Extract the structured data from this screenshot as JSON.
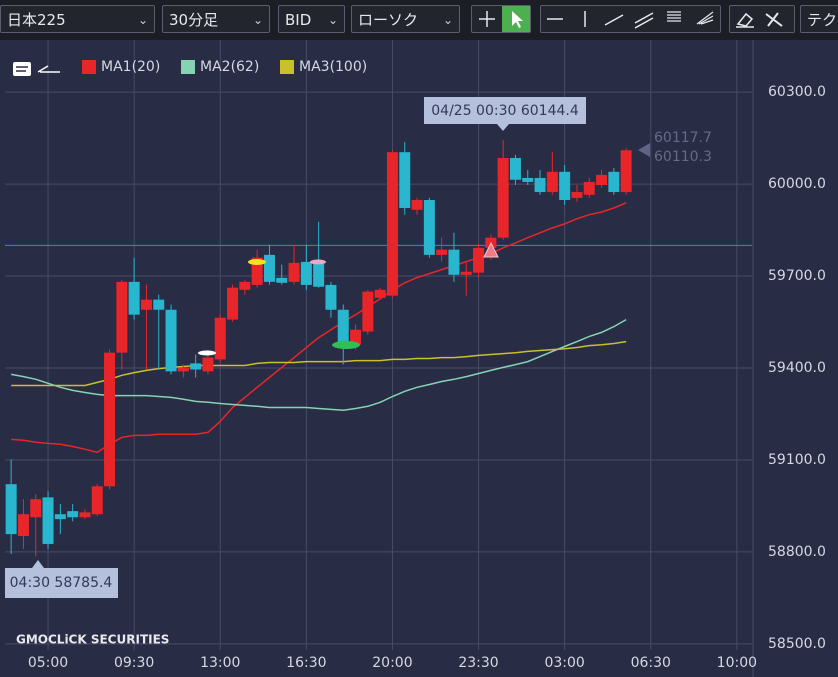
{
  "toolbar": {
    "symbol": "日本225",
    "timeframe": "30分足",
    "price_type": "BID",
    "chart_style": "ローソク",
    "tech": "テク"
  },
  "watermark": "GMOCLiCK SECURITIES",
  "chart_data": {
    "type": "candlestick",
    "up_color": "#e8262a",
    "down_color": "#29b6cf",
    "categories": [
      null,
      null,
      null,
      "05:00",
      null,
      null,
      null,
      null,
      null,
      null,
      "09:30",
      null,
      null,
      null,
      null,
      null,
      null,
      "13:00",
      null,
      null,
      null,
      null,
      null,
      null,
      "16:30",
      null,
      null,
      null,
      null,
      null,
      null,
      "20:00",
      null,
      null,
      null,
      null,
      null,
      null,
      "23:30",
      null,
      null,
      null,
      null,
      null,
      null,
      "03:00",
      null,
      null,
      null,
      null,
      null,
      null,
      "06:30",
      null,
      null,
      null,
      null,
      null,
      null,
      "10:00"
    ],
    "open": [
      59021,
      58852,
      58913,
      58978,
      58923,
      58933,
      58913,
      58923,
      59014,
      59450,
      59681,
      59590,
      59623,
      59590,
      59389,
      59415,
      59389,
      59428,
      59558,
      59655,
      59671,
      59769,
      59694,
      59681,
      59746,
      59740,
      59671,
      59590,
      59476,
      59519,
      59629,
      59636,
      60104,
      59916,
      59948,
      59769,
      59786,
      59704,
      59711,
      59792,
      59825,
      60085,
      60020,
      60020,
      59974,
      60040,
      59955,
      59965,
      59997,
      60040,
      59974,
      null,
      null,
      null,
      null,
      null,
      null,
      null,
      null,
      null
    ],
    "high": [
      59102,
      58972,
      58988,
      58998,
      58956,
      58956,
      58939,
      59021,
      59460,
      59688,
      59760,
      59672,
      59639,
      59607,
      59411,
      59444,
      59460,
      59574,
      59672,
      59688,
      59786,
      59802,
      59737,
      59802,
      59802,
      59877,
      59681,
      59607,
      59542,
      59655,
      59662,
      60111,
      60137,
      59955,
      59955,
      59825,
      59841,
      59743,
      59805,
      59835,
      60144.4,
      60095,
      60046,
      60046,
      60105,
      60062,
      59997,
      60020,
      60046,
      60053,
      60118,
      null,
      null,
      null,
      null,
      null,
      null,
      null,
      null,
      null
    ],
    "low": [
      58793,
      58809,
      58785.4,
      58809,
      58858,
      58900,
      58907,
      58917,
      59004,
      59395,
      59558,
      59395,
      59395,
      59379,
      59369,
      59369,
      59379,
      59421,
      59551,
      59639,
      59662,
      59672,
      59672,
      59672,
      59655,
      59662,
      59564,
      59411,
      59460,
      59509,
      59623,
      59629,
      59900,
      59900,
      59760,
      59747,
      59681,
      59636,
      59694,
      59753,
      59818,
      59997,
      59997,
      59965,
      59965,
      59932,
      59942,
      59955,
      59988,
      59965,
      59965,
      null,
      null,
      null,
      null,
      null,
      null,
      null,
      null,
      null
    ],
    "close": [
      58858,
      58923,
      58972,
      58826,
      58907,
      58913,
      58929,
      59014,
      59450,
      59681,
      59574,
      59623,
      59590,
      59389,
      59402,
      59395,
      59434,
      59564,
      59662,
      59681,
      59760,
      59681,
      59678,
      59743,
      59671,
      59665,
      59590,
      59476,
      59525,
      59649,
      59655,
      60104,
      59922,
      59948,
      59769,
      59786,
      59704,
      59714,
      59792,
      59825,
      60085,
      60014,
      60007,
      59974,
      60040,
      59948,
      59974,
      60007,
      60030,
      59974,
      60110.3,
      null,
      null,
      null,
      null,
      null,
      null,
      null,
      null,
      null
    ],
    "series": [
      {
        "name": "MA1(20)",
        "color": "#e8262a",
        "values": [
          59167,
          59164,
          59158,
          59154,
          59151,
          59144,
          59135,
          59125,
          59151,
          59174,
          59180,
          59180,
          59184,
          59184,
          59184,
          59184,
          59190,
          59226,
          59271,
          59304,
          59337,
          59369,
          59402,
          59434,
          59467,
          59499,
          59525,
          59551,
          59574,
          59600,
          59626,
          59655,
          59678,
          59695,
          59708,
          59721,
          59734,
          59747,
          59760,
          59773,
          59792,
          59808,
          59825,
          59841,
          59857,
          59870,
          59887,
          59900,
          59909,
          59922,
          59939,
          null,
          null,
          null,
          null,
          null,
          null,
          null,
          null,
          null
        ]
      },
      {
        "name": "MA2(62)",
        "color": "#86d3b4",
        "values": [
          59379,
          59372,
          59363,
          59350,
          59337,
          59327,
          59320,
          59314,
          59310,
          59310,
          59310,
          59310,
          59307,
          59304,
          59298,
          59291,
          59288,
          59284,
          59281,
          59278,
          59275,
          59271,
          59271,
          59271,
          59271,
          59268,
          59265,
          59262,
          59268,
          59275,
          59288,
          59307,
          59324,
          59337,
          59346,
          59356,
          59363,
          59372,
          59382,
          59392,
          59402,
          59411,
          59421,
          59437,
          59454,
          59470,
          59486,
          59503,
          59516,
          59535,
          59558,
          null,
          null,
          null,
          null,
          null,
          null,
          null,
          null,
          null
        ]
      },
      {
        "name": "MA3(100)",
        "color": "#c9c02a",
        "values": [
          59343,
          59343,
          59343,
          59343,
          59343,
          59343,
          59343,
          59353,
          59363,
          59376,
          59385,
          59392,
          59398,
          59402,
          59405,
          59408,
          59408,
          59408,
          59408,
          59408,
          59415,
          59418,
          59418,
          59418,
          59421,
          59421,
          59421,
          59421,
          59424,
          59424,
          59424,
          59428,
          59428,
          59431,
          59431,
          59434,
          59434,
          59437,
          59441,
          59444,
          59447,
          59450,
          59454,
          59457,
          59460,
          59463,
          59467,
          59473,
          59476,
          59480,
          59486,
          null,
          null,
          null,
          null,
          null,
          null,
          null,
          null,
          null
        ]
      }
    ],
    "ylim": [
      58480,
      60470
    ],
    "yticks": [
      {
        "value": 58500,
        "label": "58500.0"
      },
      {
        "value": 58800,
        "label": "58800.0"
      },
      {
        "value": 59100,
        "label": "59100.0"
      },
      {
        "value": 59400,
        "label": "59400.0"
      },
      {
        "value": 59700,
        "label": "59700.0"
      },
      {
        "value": 60000,
        "label": "60000.0"
      },
      {
        "value": 60300,
        "label": "60300.0"
      }
    ],
    "grid": true,
    "price_line": {
      "value": 59800,
      "color": "#4a7fd0"
    },
    "high_label": "04/25 00:30 60144.4",
    "low_label": "04:30 58785.4",
    "price_labels": [
      "60117.7",
      "60110.3"
    ]
  }
}
